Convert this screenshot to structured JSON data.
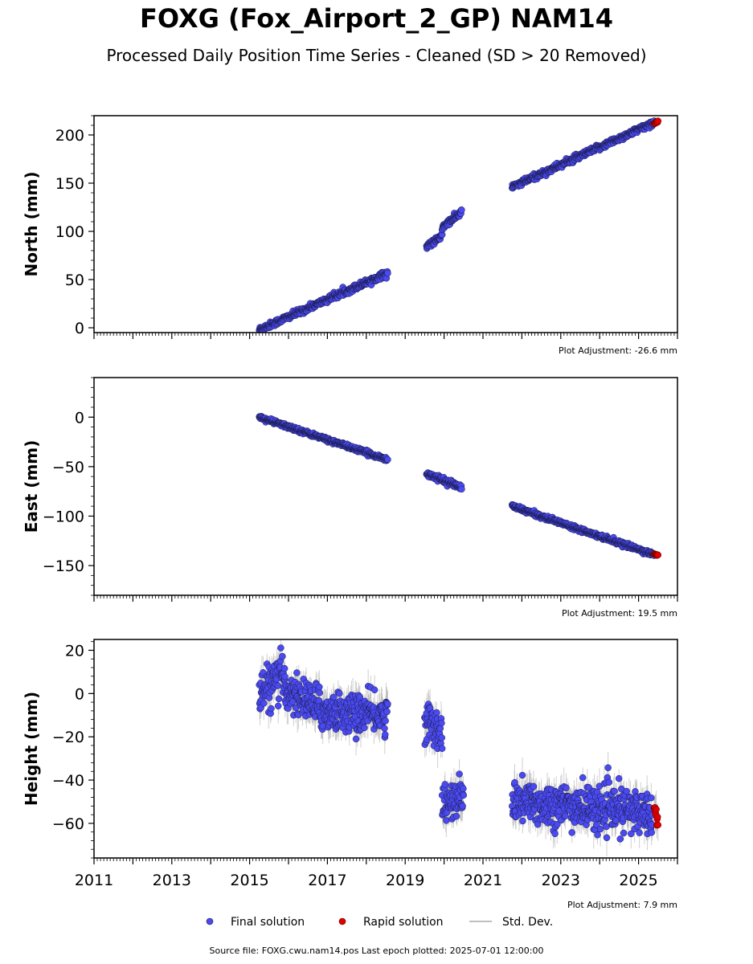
{
  "title": "FOXG (Fox_Airport_2_GP) NAM14",
  "subtitle": "Processed Daily Position Time Series - Cleaned (SD > 20 Removed)",
  "footer": "Source file: FOXG.cwu.nam14.pos  Last epoch plotted: 2025-07-01 12:00:00",
  "colors": {
    "final": "#4a4af0",
    "rapid": "#e00000",
    "std": "#aaaaaa",
    "edge": "#1a1a4a"
  },
  "legend": {
    "final": "Final solution",
    "rapid": "Rapid solution",
    "std": "Std. Dev."
  },
  "chart_data": [
    {
      "type": "scatter",
      "ylabel": "North (mm)",
      "adjustment": "Plot Adjustment: -26.6 mm",
      "ylim": [
        -5,
        220
      ],
      "yticks": [
        0,
        50,
        100,
        150,
        200
      ],
      "xlim": [
        2011,
        2026
      ],
      "xticks": [],
      "series": [
        {
          "name": "Final solution",
          "segments": [
            {
              "x": [
                2015.25,
                2018.55
              ],
              "y": [
                -2,
                57
              ],
              "scatter_sd": 1.5
            },
            {
              "x": [
                2019.55,
                2019.95
              ],
              "y": [
                84,
                95
              ],
              "scatter_sd": 1.5
            },
            {
              "x": [
                2019.95,
                2020.45
              ],
              "y": [
                104,
                120
              ],
              "scatter_sd": 1.5
            },
            {
              "x": [
                2021.75,
                2025.4
              ],
              "y": [
                146,
                213
              ],
              "scatter_sd": 1.5
            }
          ]
        },
        {
          "name": "Rapid solution",
          "segments": [
            {
              "x": [
                2025.4,
                2025.5
              ],
              "y": [
                212.5,
                214
              ],
              "scatter_sd": 0.5
            }
          ]
        }
      ]
    },
    {
      "type": "scatter",
      "ylabel": "East (mm)",
      "adjustment": "Plot Adjustment: 19.5 mm",
      "ylim": [
        -180,
        40
      ],
      "yticks": [
        0,
        -50,
        -100,
        -150
      ],
      "xlim": [
        2011,
        2026
      ],
      "xticks": [],
      "series": [
        {
          "name": "Final solution",
          "segments": [
            {
              "x": [
                2015.25,
                2018.55
              ],
              "y": [
                0,
                -43
              ],
              "scatter_sd": 1.0
            },
            {
              "x": [
                2019.55,
                2020.45
              ],
              "y": [
                -57,
                -71
              ],
              "scatter_sd": 1.2
            },
            {
              "x": [
                2021.75,
                2025.4
              ],
              "y": [
                -90,
                -139
              ],
              "scatter_sd": 1.0
            }
          ]
        },
        {
          "name": "Rapid solution",
          "segments": [
            {
              "x": [
                2025.4,
                2025.5
              ],
              "y": [
                -138.5,
                -139.5
              ],
              "scatter_sd": 0.3
            }
          ]
        }
      ]
    },
    {
      "type": "scatter",
      "ylabel": "Height (mm)",
      "adjustment": "Plot Adjustment: 7.9 mm",
      "ylim": [
        -76,
        25
      ],
      "yticks": [
        20,
        0,
        -20,
        -40,
        -60
      ],
      "xlim": [
        2011,
        2026
      ],
      "xticks": [
        2011,
        2013,
        2015,
        2017,
        2019,
        2021,
        2023,
        2025
      ],
      "series": [
        {
          "name": "Final solution",
          "segments": [
            {
              "x": [
                2015.25,
                2015.9
              ],
              "y": [
                0,
                8
              ],
              "scatter_sd": 5
            },
            {
              "x": [
                2015.9,
                2016.8
              ],
              "y": [
                2,
                -6
              ],
              "scatter_sd": 4.5
            },
            {
              "x": [
                2016.8,
                2018.55
              ],
              "y": [
                -8,
                -10
              ],
              "scatter_sd": 4.5
            },
            {
              "x": [
                2019.5,
                2019.95
              ],
              "y": [
                -12,
                -17
              ],
              "scatter_sd": 4.5
            },
            {
              "x": [
                2019.95,
                2020.5
              ],
              "y": [
                -52,
                -48
              ],
              "scatter_sd": 4.5
            },
            {
              "x": [
                2021.75,
                2025.35
              ],
              "y": [
                -50,
                -55
              ],
              "scatter_sd": 5
            }
          ]
        },
        {
          "name": "Rapid solution",
          "segments": [
            {
              "x": [
                2025.4,
                2025.5
              ],
              "y": [
                -51,
                -60
              ],
              "scatter_sd": 1.5
            }
          ]
        }
      ]
    }
  ]
}
